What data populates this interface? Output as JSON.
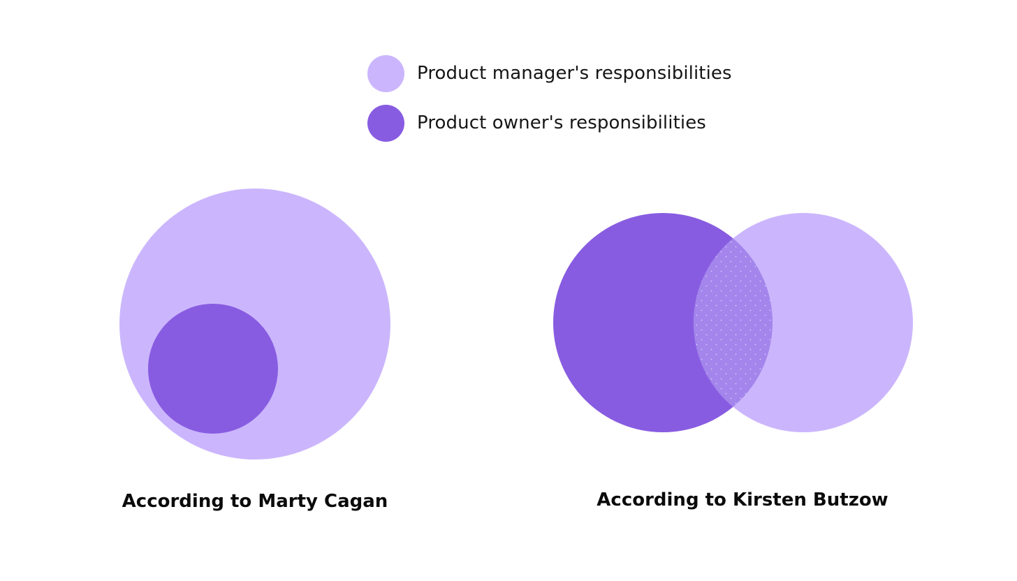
{
  "colors": {
    "manager": "#cbb6fd",
    "owner": "#885ce1",
    "overlap": "#a385eb",
    "overlap_dots": "#d8c9fb"
  },
  "legend": {
    "items": [
      {
        "label": "Product manager's responsibilities",
        "color_key": "manager"
      },
      {
        "label": "Product owner's responsibilities",
        "color_key": "owner"
      }
    ]
  },
  "diagrams": [
    {
      "caption": "According to Marty Cagan",
      "relation": "owner-inside-manager"
    },
    {
      "caption": "According to Kirsten Butzow",
      "relation": "partial-overlap"
    }
  ]
}
